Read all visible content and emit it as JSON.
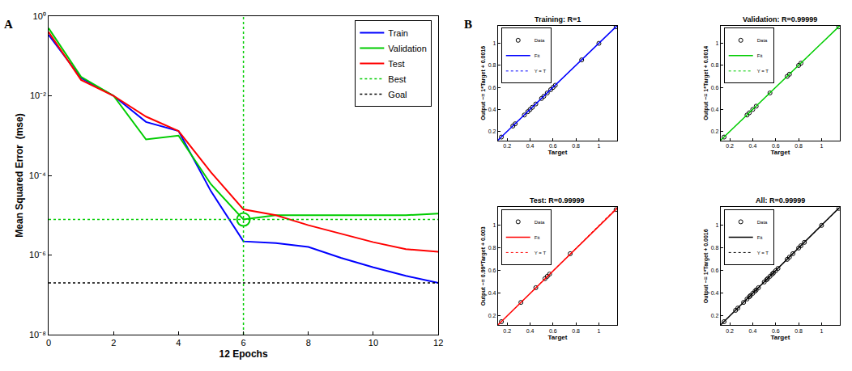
{
  "chart_data": [
    {
      "type": "line",
      "panel": "A",
      "x": [
        0,
        1,
        2,
        3,
        4,
        5,
        6,
        7,
        8,
        9,
        10,
        11,
        12
      ],
      "xlabel": "12 Epochs",
      "ylabel": "Mean Squared Error  (mse)",
      "xlim": [
        0,
        12
      ],
      "xticks": [
        0,
        2,
        4,
        6,
        8,
        10,
        12
      ],
      "ylim": [
        1e-08,
        1
      ],
      "yticks": [
        {
          "value": 1e-08,
          "label": "10⁻⁸"
        },
        {
          "value": 1e-06,
          "label": "10⁻⁶"
        },
        {
          "value": 0.0001,
          "label": "10⁻⁴"
        },
        {
          "value": 0.01,
          "label": "10⁻²"
        },
        {
          "value": 1,
          "label": "10⁰"
        }
      ],
      "log": "y",
      "grid": false,
      "legend": "top right",
      "series": [
        {
          "name": "Train",
          "color": "#0000ff",
          "line_style": "solid",
          "values": [
            0.34,
            0.028,
            0.01,
            0.0022,
            0.0013,
            4e-05,
            2.2e-06,
            2e-06,
            1.6e-06,
            8.5e-07,
            4.9e-07,
            3e-07,
            2e-07
          ]
        },
        {
          "name": "Validation",
          "color": "#00cc00",
          "line_style": "solid",
          "values": [
            0.5,
            0.03,
            0.01,
            0.0008,
            0.001,
            6e-05,
            7.8e-06,
            1e-05,
            1e-05,
            1e-05,
            1e-05,
            1e-05,
            1.1e-05
          ]
        },
        {
          "name": "Test",
          "color": "#ff0000",
          "line_style": "solid",
          "values": [
            0.4,
            0.025,
            0.01,
            0.003,
            0.0013,
            0.00012,
            1.4e-05,
            1e-05,
            5.6e-06,
            3.4e-06,
            2.1e-06,
            1.4e-06,
            1.2e-06
          ]
        },
        {
          "name": "Best",
          "color": "#00cc00",
          "line_style": "dotted",
          "marker": "circle",
          "x": 6,
          "value": 7.8e-06
        },
        {
          "name": "Goal",
          "color": "#000000",
          "line_style": "dotted",
          "value": 2e-07
        }
      ]
    },
    {
      "type": "scatter",
      "panel": "B",
      "title": "Training: R=1",
      "xlabel": "Target",
      "ylabel": "Output ~= 1*Target + 0.0016",
      "xlim": [
        0.12,
        1.16
      ],
      "ylim": [
        0.12,
        1.16
      ],
      "xticks": [
        0.2,
        0.4,
        0.6,
        0.8,
        1
      ],
      "yticks": [
        0.2,
        0.4,
        0.6,
        0.8,
        1
      ],
      "grid": false,
      "legend": "top left",
      "series": [
        {
          "name": "Data",
          "color": "#000000",
          "marker": "circle",
          "x": [
            0.15,
            0.25,
            0.27,
            0.35,
            0.38,
            0.4,
            0.42,
            0.45,
            0.5,
            0.52,
            0.55,
            0.58,
            0.6,
            0.62,
            0.85,
            1.0,
            1.15
          ],
          "values": [
            0.15,
            0.25,
            0.27,
            0.35,
            0.38,
            0.4,
            0.42,
            0.45,
            0.5,
            0.52,
            0.55,
            0.58,
            0.6,
            0.62,
            0.85,
            1.0,
            1.15
          ]
        },
        {
          "name": "Fit",
          "color": "#0000ff",
          "line_style": "solid",
          "slope": 1,
          "intercept": 0.0016
        },
        {
          "name": "Y = T",
          "color": "#0000ff",
          "line_style": "dotted"
        }
      ]
    },
    {
      "type": "scatter",
      "title": "Validation: R=0.99999",
      "xlabel": "Target",
      "ylabel": "Output ~= 1*Target + 0.0014",
      "xlim": [
        0.12,
        1.16
      ],
      "ylim": [
        0.12,
        1.16
      ],
      "xticks": [
        0.2,
        0.4,
        0.6,
        0.8,
        1
      ],
      "yticks": [
        0.2,
        0.4,
        0.6,
        0.8,
        1
      ],
      "grid": false,
      "legend": "top left",
      "series": [
        {
          "name": "Data",
          "color": "#000000",
          "marker": "circle",
          "x": [
            0.15,
            0.35,
            0.37,
            0.4,
            0.43,
            0.55,
            0.7,
            0.72,
            0.8,
            0.82,
            1.15
          ],
          "values": [
            0.15,
            0.35,
            0.37,
            0.4,
            0.43,
            0.55,
            0.7,
            0.72,
            0.8,
            0.82,
            1.15
          ]
        },
        {
          "name": "Fit",
          "color": "#00cc00",
          "line_style": "solid",
          "slope": 1,
          "intercept": 0.0014
        },
        {
          "name": "Y = T",
          "color": "#00cc00",
          "line_style": "dotted"
        }
      ]
    },
    {
      "type": "scatter",
      "title": "Test: R=0.99999",
      "xlabel": "Target",
      "ylabel": "Output ~= 0.99*Target + 0.003",
      "xlim": [
        0.12,
        1.16
      ],
      "ylim": [
        0.12,
        1.16
      ],
      "xticks": [
        0.2,
        0.4,
        0.6,
        0.8,
        1
      ],
      "yticks": [
        0.2,
        0.4,
        0.6,
        0.8,
        1
      ],
      "grid": false,
      "legend": "top left",
      "series": [
        {
          "name": "Data",
          "color": "#000000",
          "marker": "circle",
          "x": [
            0.15,
            0.32,
            0.45,
            0.53,
            0.55,
            0.57,
            0.75,
            1.15
          ],
          "values": [
            0.15,
            0.32,
            0.45,
            0.53,
            0.55,
            0.57,
            0.75,
            1.14
          ]
        },
        {
          "name": "Fit",
          "color": "#ff0000",
          "line_style": "solid",
          "slope": 0.99,
          "intercept": 0.003
        },
        {
          "name": "Y = T",
          "color": "#ff0000",
          "line_style": "dotted"
        }
      ]
    },
    {
      "type": "scatter",
      "title": "All: R=0.99999",
      "xlabel": "Target",
      "ylabel": "Output ~= 1*Target + 0.0016",
      "xlim": [
        0.12,
        1.16
      ],
      "ylim": [
        0.12,
        1.16
      ],
      "xticks": [
        0.2,
        0.4,
        0.6,
        0.8,
        1
      ],
      "yticks": [
        0.2,
        0.4,
        0.6,
        0.8,
        1
      ],
      "grid": false,
      "legend": "top left",
      "series": [
        {
          "name": "Data",
          "color": "#000000",
          "marker": "circle",
          "x": [
            0.15,
            0.25,
            0.27,
            0.32,
            0.35,
            0.37,
            0.38,
            0.4,
            0.42,
            0.43,
            0.45,
            0.5,
            0.52,
            0.53,
            0.55,
            0.57,
            0.58,
            0.6,
            0.62,
            0.7,
            0.72,
            0.75,
            0.8,
            0.82,
            0.85,
            1.0,
            1.15
          ],
          "values": [
            0.15,
            0.25,
            0.27,
            0.32,
            0.35,
            0.37,
            0.38,
            0.4,
            0.42,
            0.43,
            0.45,
            0.5,
            0.52,
            0.53,
            0.55,
            0.57,
            0.58,
            0.6,
            0.62,
            0.7,
            0.72,
            0.75,
            0.8,
            0.82,
            0.85,
            1.0,
            1.15
          ]
        },
        {
          "name": "Fit",
          "color": "#000000",
          "line_style": "solid",
          "slope": 1,
          "intercept": 0.0016
        },
        {
          "name": "Y = T",
          "color": "#000000",
          "line_style": "dotted"
        }
      ]
    }
  ]
}
